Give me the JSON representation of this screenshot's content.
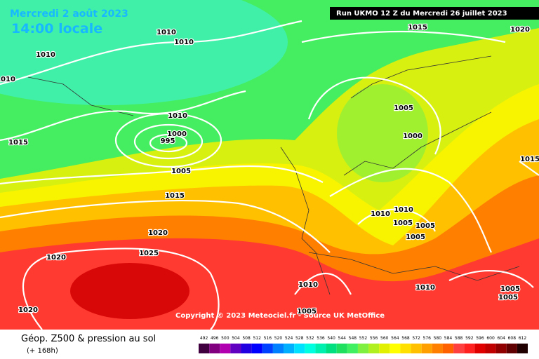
{
  "header": {
    "date": "Mercredi 2 août 2023",
    "time": "14:00 locale",
    "run": "Run UKMO 12 Z du Mercredi 26 juillet 2023"
  },
  "isobars": [
    "1010",
    "1010",
    "1010",
    "1010",
    "1015",
    "1020",
    "1010",
    "1000",
    "995",
    "1005",
    "1015",
    "1015",
    "1020",
    "1025",
    "1020",
    "1020",
    "1005",
    "1000",
    "1015",
    "1010",
    "1010",
    "1005",
    "1005",
    "1005",
    "1010",
    "1010",
    "1005",
    "1005",
    "1005"
  ],
  "copyright": "Copyright © 2023 Meteociel.fr - Source UK MetOffice",
  "legend": {
    "title": "Géop. Z500 & pression au sol",
    "subtitle": "(+ 168h)",
    "scale": [
      "492",
      "496",
      "500",
      "504",
      "508",
      "512",
      "516",
      "520",
      "524",
      "528",
      "532",
      "536",
      "540",
      "544",
      "548",
      "552",
      "556",
      "560",
      "564",
      "568",
      "572",
      "576",
      "580",
      "584",
      "588",
      "592",
      "596",
      "600",
      "604",
      "608",
      "612"
    ],
    "colors": [
      "#400040",
      "#800080",
      "#b000b0",
      "#6000c0",
      "#2000e0",
      "#0000ff",
      "#0040ff",
      "#0080ff",
      "#00b0ff",
      "#00e0ff",
      "#00ffe0",
      "#00f0b0",
      "#00e080",
      "#20e060",
      "#40f060",
      "#80f040",
      "#b0f020",
      "#e0f000",
      "#ffff00",
      "#ffe000",
      "#ffc000",
      "#ffa000",
      "#ff8000",
      "#ff6000",
      "#ff4040",
      "#ff2020",
      "#e00000",
      "#c00000",
      "#900000",
      "#600000",
      "#200000"
    ]
  }
}
